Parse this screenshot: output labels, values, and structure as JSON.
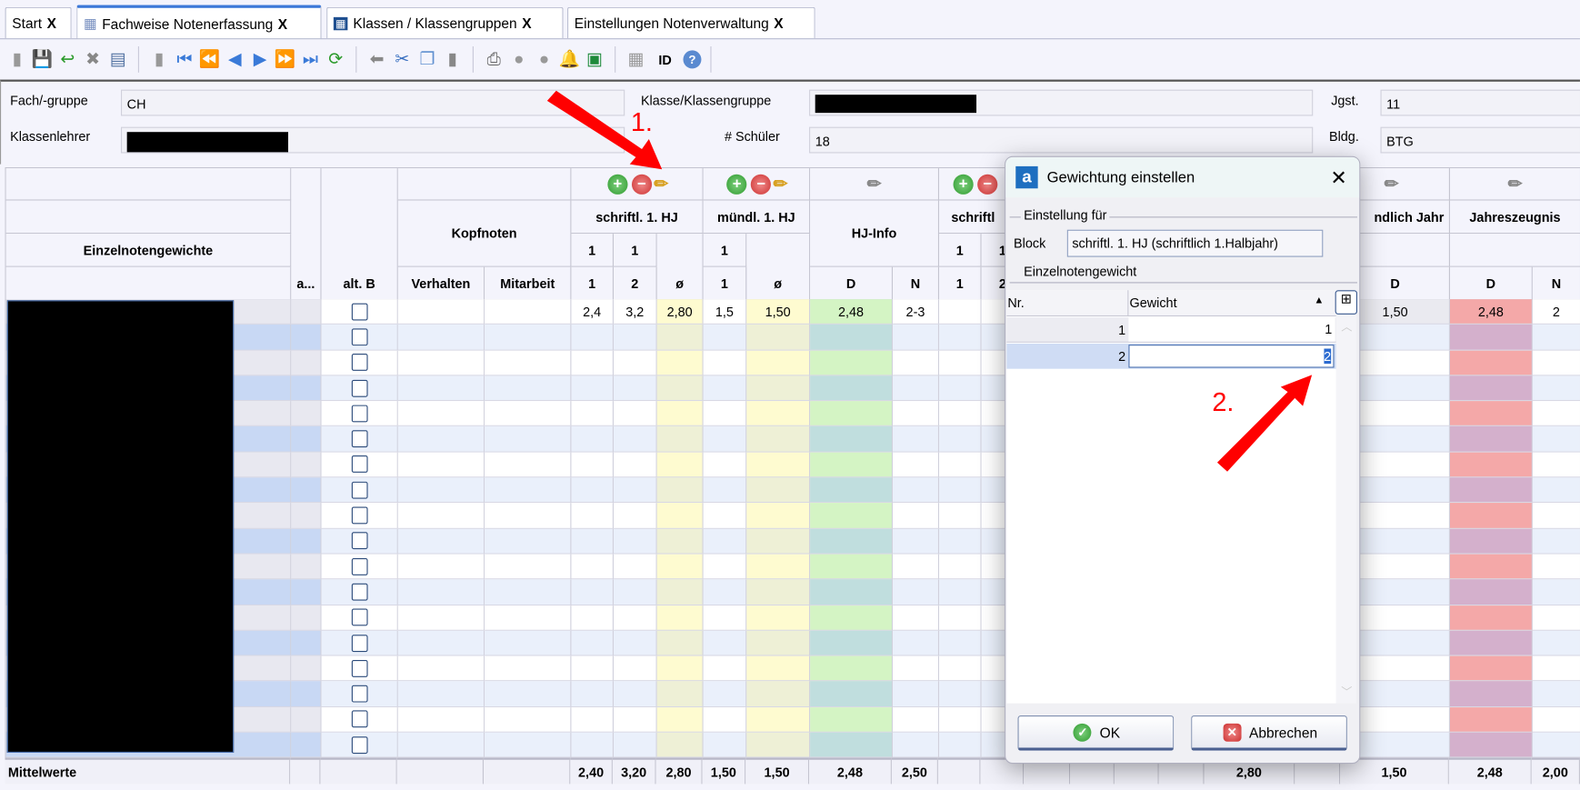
{
  "tabs": [
    {
      "label": "Start",
      "close": "X",
      "icon": ""
    },
    {
      "label": "Fachweise Notenerfassung",
      "close": "X",
      "icon": "table-icon",
      "active": true
    },
    {
      "label": "Klassen / Klassengruppen",
      "close": "X",
      "icon": "class-grid-icon"
    },
    {
      "label": "Einstellungen Notenverwaltung",
      "close": "X",
      "icon": ""
    }
  ],
  "toolbar": {
    "id_label": "ID",
    "icons": [
      "new-icon",
      "save-icon",
      "undo-icon",
      "delete-icon",
      "form-icon",
      "copy-record-icon",
      "first-icon",
      "fast-back-icon",
      "prev-icon",
      "next-icon",
      "fast-forward-icon",
      "last-icon",
      "refresh-icon",
      "back-arrow-icon",
      "cut-icon",
      "copy-icon",
      "paste-icon",
      "print-icon",
      "disc-icon",
      "bulb-icon",
      "bell-icon",
      "excel-icon",
      "import-icon",
      "id-icon",
      "help-icon"
    ]
  },
  "info": {
    "fach_label": "Fach/-gruppe",
    "fach_value": "CH",
    "klasse_label": "Klasse/Klassengruppe",
    "jgst_label": "Jgst.",
    "jgst_value": "11",
    "klassenlehrer_label": "Klassenlehrer",
    "schueler_label": "# Schüler",
    "schueler_value": "18",
    "bldg_label": "Bldg.",
    "bldg_value": "BTG"
  },
  "header": {
    "einzelnotengewichte": "Einzelnotengewichte",
    "a": "a...",
    "alt_b": "alt. B",
    "kopfnoten": "Kopfnoten",
    "verhalten": "Verhalten",
    "mitarbeit": "Mitarbeit",
    "schriftl": "schriftl. 1. HJ",
    "muendl": "mündl. 1. HJ",
    "hjinfo": "HJ-Info",
    "schrift2": "schriftl",
    "muendlich_jahr": "ndlich Jahr",
    "jahreszeugnis": "Jahreszeugnis",
    "w1": "1",
    "w2": "1",
    "w3": "1",
    "w4": "1",
    "w5": "1",
    "n1": "1",
    "n2": "2",
    "avg": "ø",
    "n3": "1",
    "avg2": "ø",
    "d": "D",
    "n": "N",
    "n4": "1",
    "n5": "2",
    "d2": "D",
    "d3": "D",
    "n6": "N"
  },
  "student_count": 18,
  "first_row": {
    "s1": "2,4",
    "s2": "3,2",
    "savg": "2,80",
    "m1": "1,5",
    "mavg": "1,50",
    "hjd": "2,48",
    "hjn": "2-3",
    "mjd": "1,50",
    "jzd": "2,48",
    "jzn": "2"
  },
  "footer": {
    "label": "Mittelwerte",
    "values": {
      "s1": "2,40",
      "s2": "3,20",
      "savg": "2,80",
      "m1": "1,50",
      "mavg": "1,50",
      "hjd": "2,48",
      "hjn": "2,50",
      "h5": "2,80",
      "mjd": "1,50",
      "jzd": "2,48",
      "jzn": "2,00"
    }
  },
  "dialog": {
    "logo": "a",
    "title": "Gewichtung einstellen",
    "group1": "Einstellung für",
    "block_label": "Block",
    "block_value": "schriftl. 1. HJ (schriftlich 1.Halbjahr)",
    "group2": "Einzelnotengewicht",
    "col_nr": "Nr.",
    "col_gewicht": "Gewicht",
    "rows": [
      {
        "nr": "1",
        "gewicht": "1"
      },
      {
        "nr": "2",
        "gewicht": "2"
      }
    ],
    "ok": "OK",
    "cancel": "Abbrechen"
  },
  "annotations": {
    "step1": "1.",
    "step2": "2.",
    "color": "#ff0000"
  },
  "colors": {
    "yellow": "#fefbd0",
    "green": "#d4f4c4",
    "red": "#f4a8a8",
    "row_alt": "#eaf0fb",
    "accent": "#3c78d8"
  }
}
